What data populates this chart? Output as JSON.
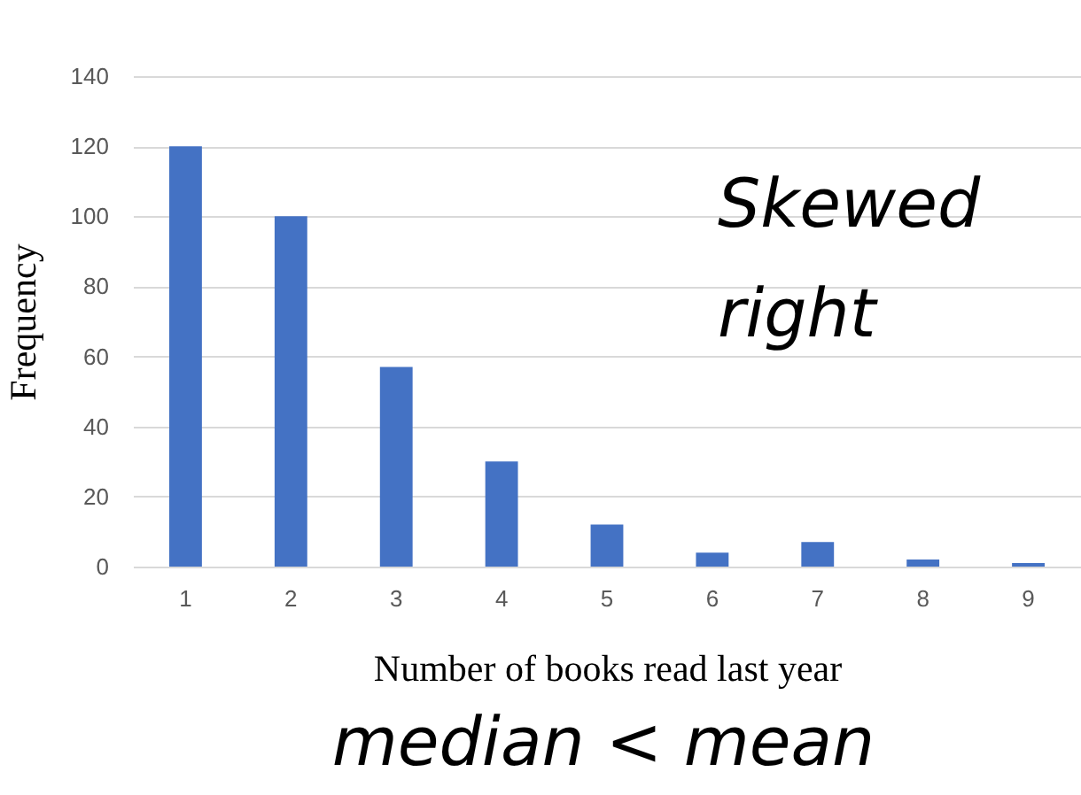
{
  "chart_data": {
    "type": "bar",
    "xlabel": "Number of books read last year",
    "ylabel": "Frequency",
    "categories": [
      "1",
      "2",
      "3",
      "4",
      "5",
      "6",
      "7",
      "8",
      "9"
    ],
    "values": [
      120,
      100,
      57,
      30,
      12,
      4,
      7,
      2,
      1
    ],
    "color": "#4472c4",
    "ylim": [
      0,
      140
    ],
    "yticks": [
      0,
      20,
      40,
      60,
      80,
      100,
      120,
      140
    ],
    "grid": "y",
    "annotations": [
      "Skewed right",
      "median < mean"
    ]
  }
}
